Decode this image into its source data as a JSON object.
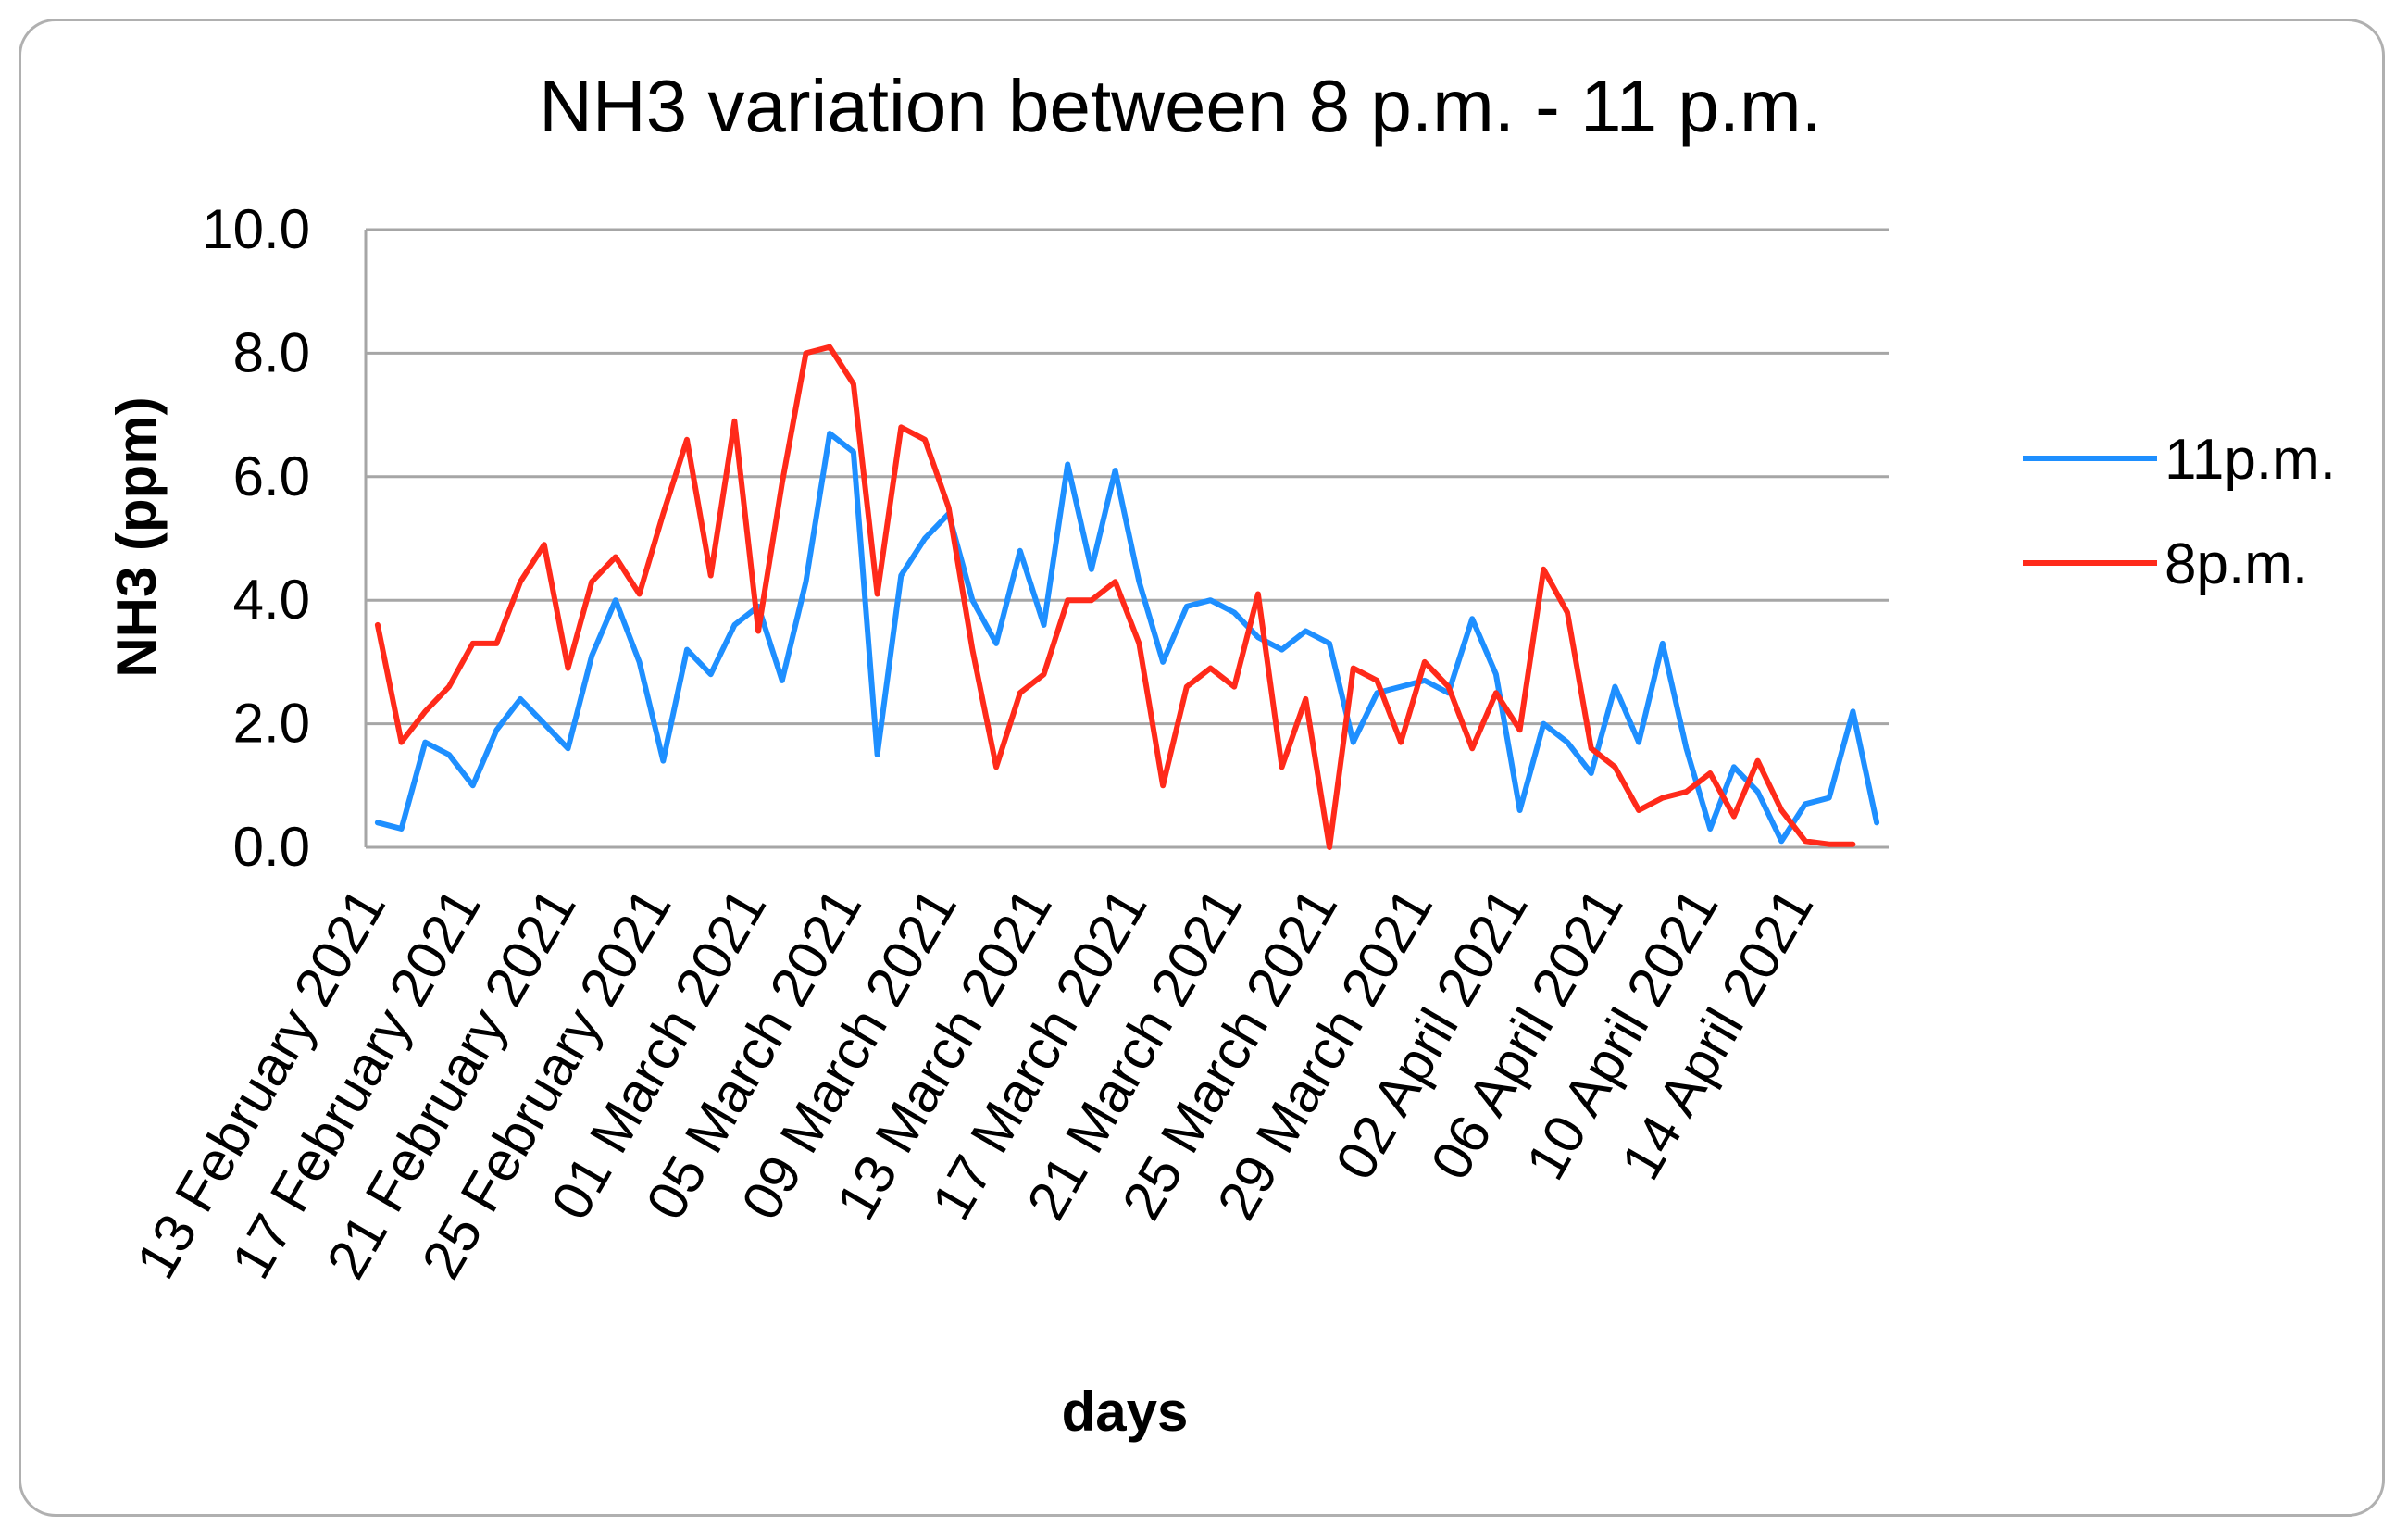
{
  "chart_data": {
    "type": "line",
    "title": "NH3 variation between 8 p.m. - 11 p.m.",
    "xlabel": "days",
    "ylabel": "NH3 (ppm)",
    "ylim": [
      0,
      10
    ],
    "y_ticks": [
      "0.0",
      "2.0",
      "4.0",
      "6.0",
      "8.0",
      "10.0"
    ],
    "grid": true,
    "legend_position": "right",
    "x_tick_labels": [
      "13 February 2021",
      "17 February 2021",
      "21 February 2021",
      "25 February 2021",
      "01 March 2021",
      "05 March 2021",
      "09 March 2021",
      "13 March 2021",
      "17 March 2021",
      "21 March 2021",
      "25 March 2021",
      "29 March 2021",
      "02 April 2021",
      "06 April 2021",
      "10 April 2021",
      "14 April 2021"
    ],
    "x_start": "13 February 2021",
    "x_end": "17 April 2021",
    "series": [
      {
        "name": "11p.m.",
        "color": "#1e8fff",
        "values": [
          0.4,
          0.3,
          1.7,
          1.5,
          1.0,
          1.9,
          2.4,
          2.0,
          1.6,
          3.1,
          4.0,
          3.0,
          1.4,
          3.2,
          2.8,
          3.6,
          3.9,
          2.7,
          4.3,
          6.7,
          6.4,
          1.5,
          4.4,
          5.0,
          5.4,
          4.0,
          3.3,
          4.8,
          3.6,
          6.2,
          4.5,
          6.1,
          4.3,
          3.0,
          3.9,
          4.0,
          3.8,
          3.4,
          3.2,
          3.5,
          3.3,
          1.7,
          2.5,
          2.6,
          2.7,
          2.5,
          3.7,
          2.8,
          0.6,
          2.0,
          1.7,
          1.2,
          2.6,
          1.7,
          3.3,
          1.6,
          0.3,
          1.3,
          0.9,
          0.1,
          0.7,
          0.8,
          2.2,
          0.4
        ]
      },
      {
        "name": "8p.m.",
        "color": "#ff2a1a",
        "values": [
          3.6,
          1.7,
          2.2,
          2.6,
          3.3,
          3.3,
          4.3,
          4.9,
          2.9,
          4.3,
          4.7,
          4.1,
          5.4,
          6.6,
          4.4,
          6.9,
          3.5,
          5.9,
          8.0,
          8.1,
          7.5,
          4.1,
          6.8,
          6.6,
          5.5,
          3.2,
          1.3,
          2.5,
          2.8,
          4.0,
          4.0,
          4.3,
          3.3,
          1.0,
          2.6,
          2.9,
          2.6,
          4.1,
          1.3,
          2.4,
          0.0,
          2.9,
          2.7,
          1.7,
          3.0,
          2.6,
          1.6,
          2.5,
          1.9,
          4.5,
          3.8,
          1.6,
          1.3,
          0.6,
          0.8,
          0.9,
          1.2,
          0.5,
          1.4,
          0.6,
          0.1,
          0.05,
          0.05
        ]
      }
    ]
  }
}
